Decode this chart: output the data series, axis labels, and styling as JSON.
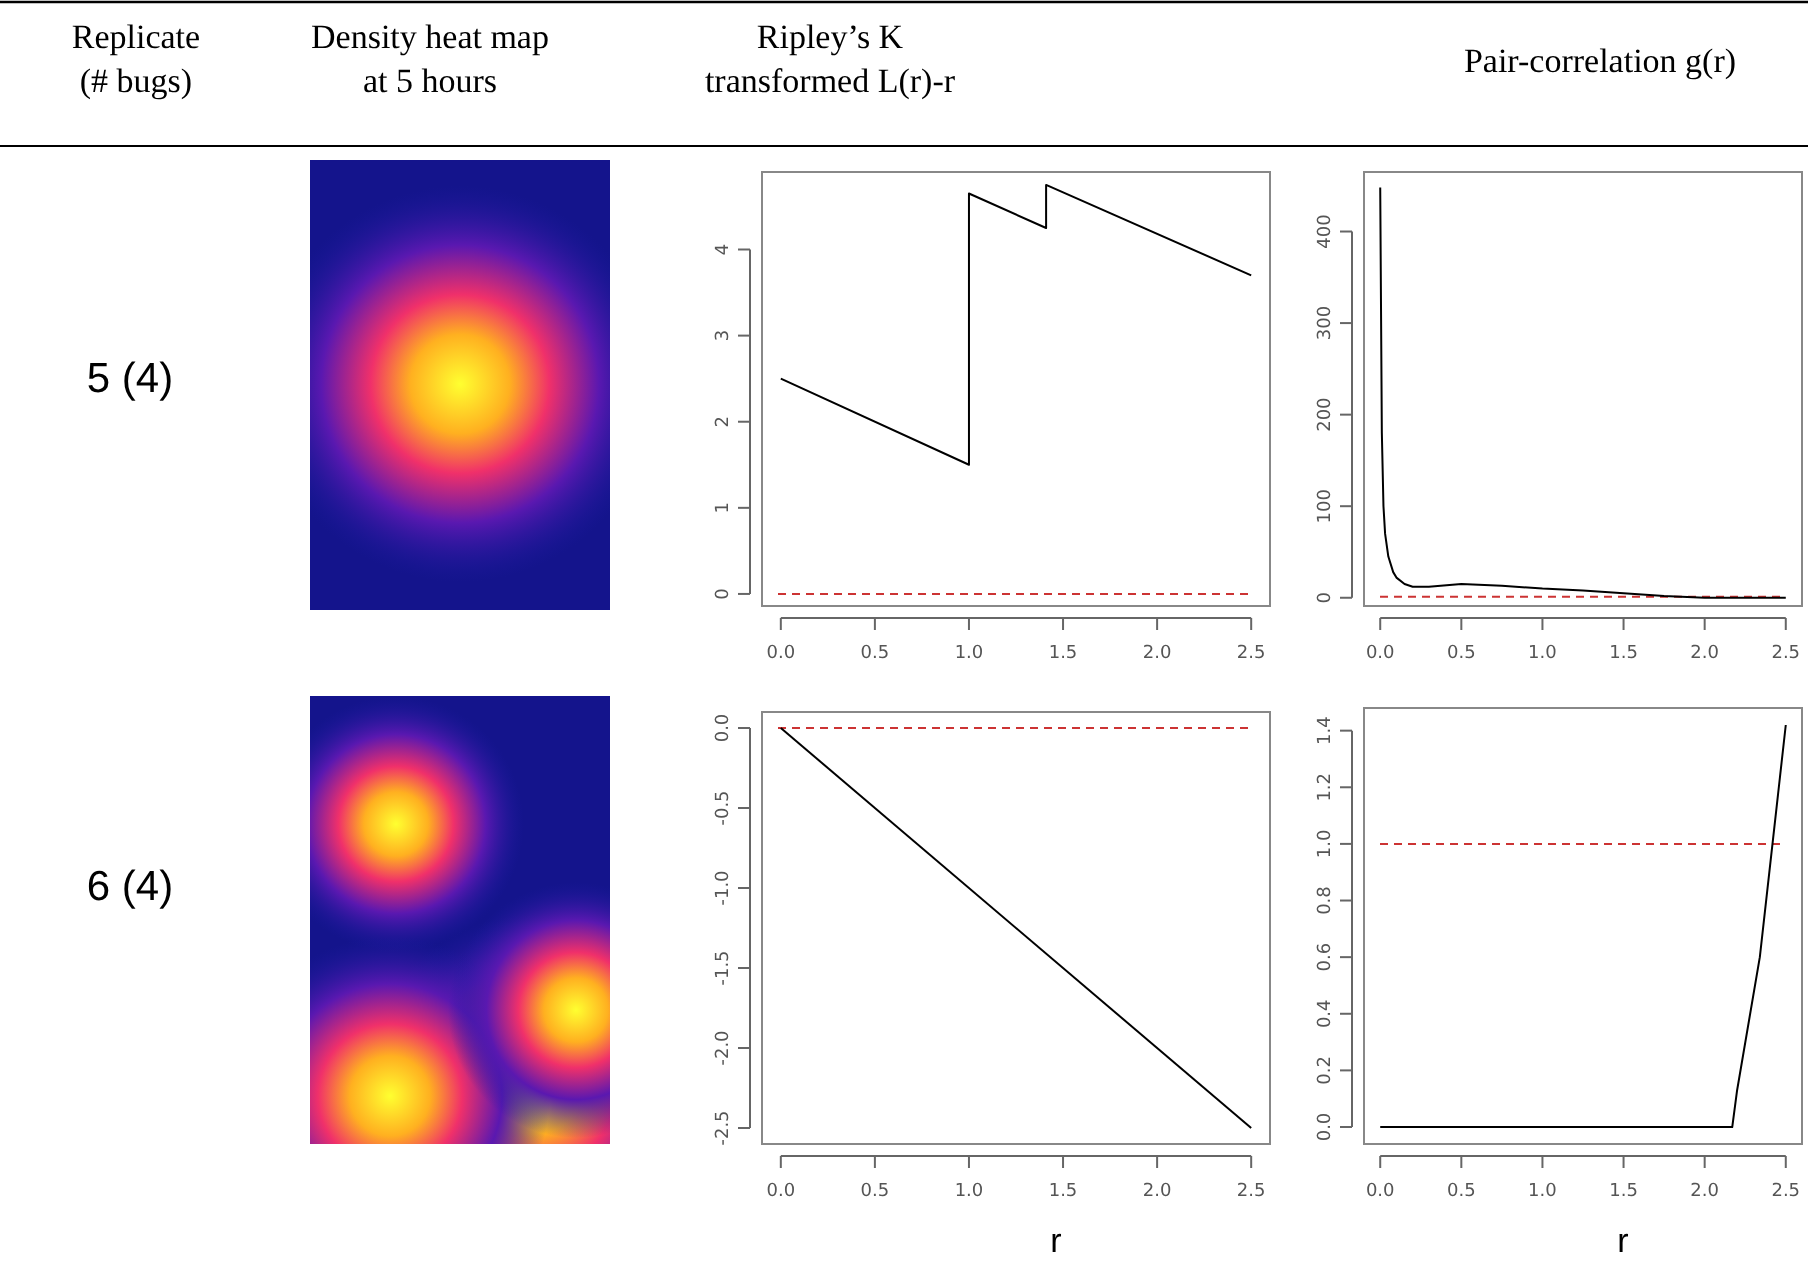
{
  "chart_data": [
    {
      "type": "other",
      "annotations": [
        "Replicate\n(# bugs)",
        "Density heat map\nat 5 hours",
        "Ripley’s K\ntransformed L(r)-r",
        "Pair-correlation g(r)",
        "5 (4)",
        "6 (4)"
      ]
    },
    {
      "type": "line",
      "x": [
        0,
        1.0,
        1.0,
        1.41,
        1.41,
        2.5
      ],
      "series": [
        {
          "color": "#000000",
          "values": [
            2.5,
            1.5,
            4.65,
            4.25,
            4.75,
            3.7
          ]
        }
      ],
      "xlim": [
        -0.1,
        2.6
      ],
      "ylim": [
        -0.14,
        4.9
      ],
      "xticks": [
        {
          "value": 0,
          "label": "0.0"
        },
        {
          "value": 0.5,
          "label": "0.5"
        },
        {
          "value": 1,
          "label": "1.0"
        },
        {
          "value": 1.5,
          "label": "1.5"
        },
        {
          "value": 2,
          "label": "2.0"
        },
        {
          "value": 2.5,
          "label": "2.5"
        }
      ],
      "yticks": [
        0,
        1,
        2,
        3,
        4
      ],
      "ref_lines": [
        {
          "axis": "y",
          "value": 0,
          "color": "#cc3333",
          "line_style": "dashed"
        }
      ]
    },
    {
      "type": "line",
      "x": [
        0,
        0.01,
        0.02,
        0.03,
        0.05,
        0.08,
        0.1,
        0.15,
        0.2,
        0.3,
        0.5,
        0.75,
        1.0,
        1.25,
        1.5,
        1.75,
        2.0,
        2.25,
        2.5
      ],
      "series": [
        {
          "color": "#000000",
          "values": [
            448,
            180,
            100,
            70,
            45,
            28,
            22,
            15,
            12,
            12,
            15,
            13,
            10,
            8,
            5,
            2,
            0,
            0,
            0
          ]
        }
      ],
      "xlim": [
        -0.1,
        2.6
      ],
      "ylim": [
        -9,
        465
      ],
      "xticks": [
        {
          "value": 0,
          "label": "0.0"
        },
        {
          "value": 0.5,
          "label": "0.5"
        },
        {
          "value": 1,
          "label": "1.0"
        },
        {
          "value": 1.5,
          "label": "1.5"
        },
        {
          "value": 2,
          "label": "2.0"
        },
        {
          "value": 2.5,
          "label": "2.5"
        }
      ],
      "yticks": [
        0,
        100,
        200,
        300,
        400
      ],
      "ref_lines": [
        {
          "axis": "y",
          "value": 1,
          "color": "#cc3333",
          "line_style": "dashed"
        }
      ]
    },
    {
      "type": "line",
      "x": [
        0,
        2.5
      ],
      "xlabel": "r",
      "series": [
        {
          "color": "#000000",
          "values": [
            0,
            -2.5
          ]
        }
      ],
      "xlim": [
        -0.1,
        2.6
      ],
      "ylim": [
        -2.6,
        0.1
      ],
      "xticks": [
        {
          "value": 0,
          "label": "0.0"
        },
        {
          "value": 0.5,
          "label": "0.5"
        },
        {
          "value": 1,
          "label": "1.0"
        },
        {
          "value": 1.5,
          "label": "1.5"
        },
        {
          "value": 2,
          "label": "2.0"
        },
        {
          "value": 2.5,
          "label": "2.5"
        }
      ],
      "yticks": [
        {
          "value": 0,
          "label": "0.0"
        },
        {
          "value": -0.5,
          "label": "-0.5"
        },
        {
          "value": -1,
          "label": "-1.0"
        },
        {
          "value": -1.5,
          "label": "-1.5"
        },
        {
          "value": -2,
          "label": "-2.0"
        },
        {
          "value": -2.5,
          "label": "-2.5"
        }
      ],
      "ref_lines": [
        {
          "axis": "y",
          "value": 0,
          "color": "#cc3333",
          "line_style": "dashed"
        }
      ]
    },
    {
      "type": "line",
      "x": [
        0,
        2.17,
        2.2,
        2.34,
        2.5
      ],
      "xlabel": "r",
      "series": [
        {
          "color": "#000000",
          "values": [
            0,
            0,
            0.13,
            0.6,
            1.42
          ]
        }
      ],
      "xlim": [
        -0.1,
        2.6
      ],
      "ylim": [
        -0.06,
        1.48
      ],
      "xticks": [
        {
          "value": 0,
          "label": "0.0"
        },
        {
          "value": 0.5,
          "label": "0.5"
        },
        {
          "value": 1,
          "label": "1.0"
        },
        {
          "value": 1.5,
          "label": "1.5"
        },
        {
          "value": 2,
          "label": "2.0"
        },
        {
          "value": 2.5,
          "label": "2.5"
        }
      ],
      "yticks": [
        {
          "value": 0,
          "label": "0.0"
        },
        {
          "value": 0.2,
          "label": "0.2"
        },
        {
          "value": 0.4,
          "label": "0.4"
        },
        {
          "value": 0.6,
          "label": "0.6"
        },
        {
          "value": 0.8,
          "label": "0.8"
        },
        {
          "value": 1,
          "label": "1.0"
        },
        {
          "value": 1.2,
          "label": "1.2"
        },
        {
          "value": 1.4,
          "label": "1.4"
        }
      ],
      "ref_lines": [
        {
          "axis": "y",
          "value": 1,
          "color": "#cc3333",
          "line_style": "dashed"
        }
      ]
    }
  ]
}
